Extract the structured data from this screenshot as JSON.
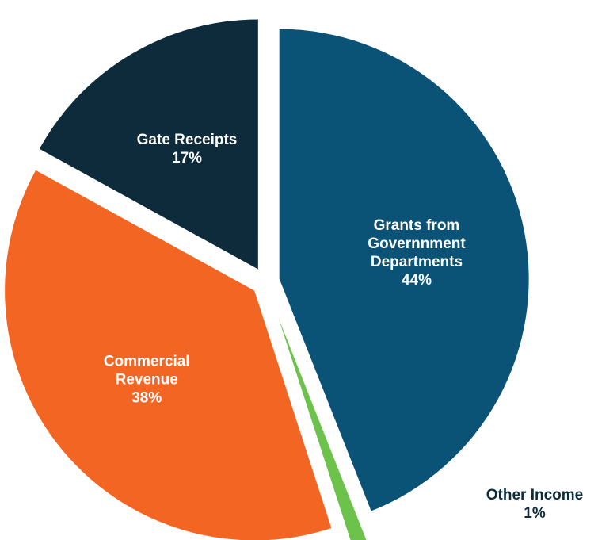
{
  "chart_data": {
    "type": "pie",
    "categories": [
      "Grants from Governnment Departments",
      "Other Income",
      "Commercial Revenue",
      "Gate Receipts"
    ],
    "values": [
      44,
      1,
      38,
      17
    ],
    "value_labels": [
      "44%",
      "1%",
      "38%",
      "17%"
    ],
    "colors": [
      "#0b5376",
      "#6cc24a",
      "#f26522",
      "#0d2b3b"
    ]
  }
}
